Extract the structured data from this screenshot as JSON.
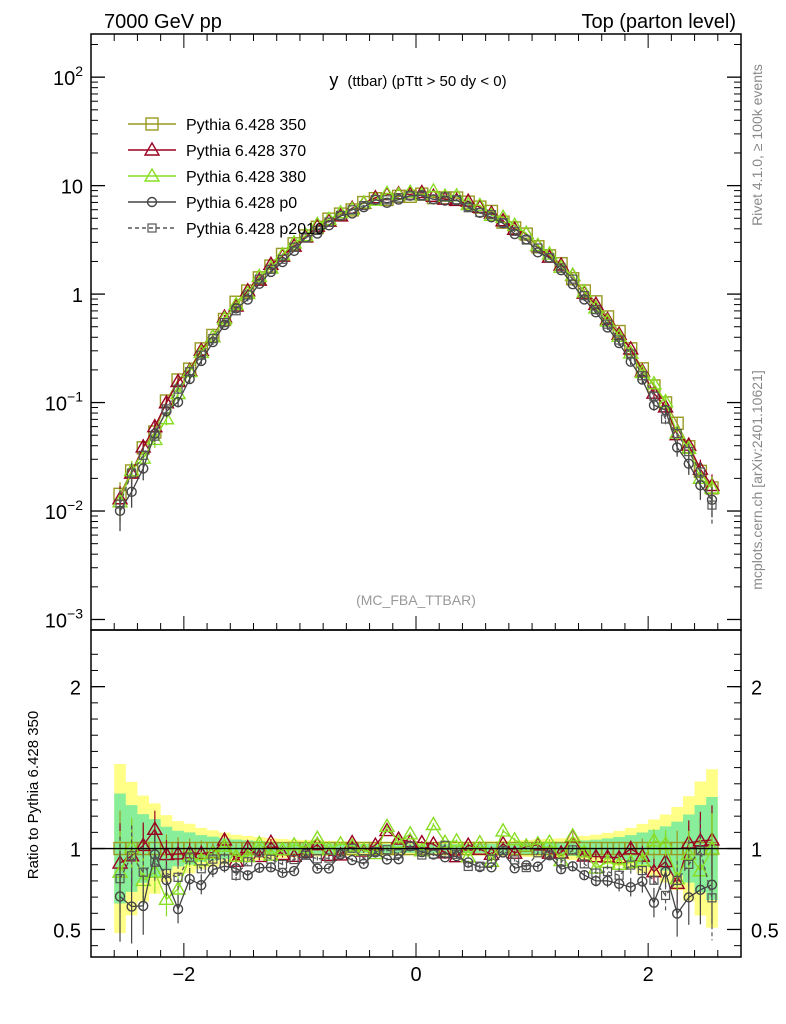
{
  "header": {
    "left": "7000 GeV pp",
    "right": "Top (parton level)"
  },
  "side_labels": {
    "rivet": "Rivet 4.1.0, ≥ 100k events",
    "mcplots": "mcplots.cern.ch [arXiv:2401.10621]"
  },
  "chart_data": {
    "type": "line",
    "title_main": "y",
    "title_sub": "(ttbar) (pTtt > 50 dy < 0)",
    "watermark": "(MC_FBA_TTBAR)",
    "xlim": [
      -2.8,
      2.8
    ],
    "x_ticks": [
      -2,
      0,
      2
    ],
    "x_tick_labels": [
      "−2",
      "0",
      "2"
    ],
    "main": {
      "yscale": "log",
      "ylim": [
        0.0008,
        250
      ],
      "y_ticks": [
        0.001,
        0.01,
        0.1,
        1,
        10,
        100
      ],
      "y_tick_labels": [
        {
          "base": "10",
          "exp": "−3"
        },
        {
          "base": "10",
          "exp": "−2"
        },
        {
          "base": "10",
          "exp": "−1"
        },
        {
          "base": "1",
          "exp": ""
        },
        {
          "base": "10",
          "exp": ""
        },
        {
          "base": "10",
          "exp": "2"
        }
      ]
    },
    "ratio": {
      "ylabel": "Ratio to Pythia 6.428 350",
      "ylim": [
        0.33,
        2.35
      ],
      "y_ticks": [
        0.5,
        1,
        2
      ],
      "y_tick_labels": [
        "0.5",
        "1",
        "2"
      ],
      "reference": 1
    },
    "legend_position": "top-left",
    "series": [
      {
        "name": "Pythia 6.428 350",
        "color": "#999922",
        "marker": "square",
        "dash": false,
        "amp": 8.3,
        "sigma": 0.72,
        "noise_amp": 0.05,
        "seed": 11
      },
      {
        "name": "Pythia 6.428 370",
        "color": "#990022",
        "marker": "triangle",
        "dash": false,
        "amp": 8.4,
        "sigma": 0.715,
        "noise_amp": 0.06,
        "seed": 23
      },
      {
        "name": "Pythia 6.428 380",
        "color": "#88dd22",
        "marker": "triangle",
        "dash": false,
        "amp": 8.6,
        "sigma": 0.71,
        "noise_amp": 0.06,
        "seed": 37
      },
      {
        "name": "Pythia 6.428 p0",
        "color": "#444444",
        "marker": "circle",
        "dash": false,
        "amp": 7.9,
        "sigma": 0.705,
        "noise_amp": 0.07,
        "seed": 53
      },
      {
        "name": "Pythia 6.428 p2010",
        "color": "#555555",
        "marker": "square-small",
        "dash": true,
        "amp": 8.0,
        "sigma": 0.71,
        "noise_amp": 0.05,
        "seed": 71
      }
    ]
  }
}
